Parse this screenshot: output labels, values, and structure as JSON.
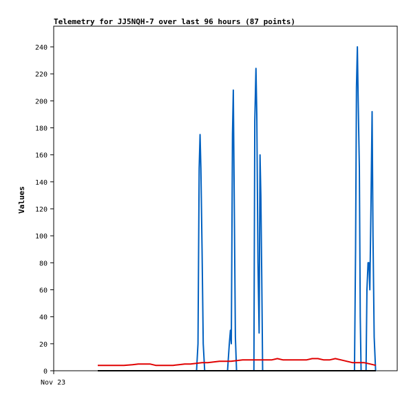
{
  "chart_data": {
    "type": "line",
    "title": "Telemetry for JJ5NQH-7 over last 96 hours (87 points)",
    "xlabel": "",
    "ylabel": "Values",
    "x_tick_labels": [
      "Nov 23"
    ],
    "y_ticks": [
      0,
      20,
      40,
      60,
      80,
      100,
      120,
      140,
      160,
      180,
      200,
      220,
      240
    ],
    "ylim": [
      0,
      256
    ],
    "xlim": [
      0,
      96
    ],
    "grid": false,
    "legend": "none",
    "series": [
      {
        "color": "#0060c0",
        "x": [
          0,
          34.1,
          34.6,
          35.0,
          35.3,
          35.6,
          36.0,
          36.4,
          36.9,
          37.3,
          44.8,
          45.4,
          45.8,
          46.1,
          46.5,
          46.8,
          47.1,
          47.5,
          47.9,
          48.3,
          48.8,
          49.2,
          49.6,
          50.0,
          53.9,
          54.2,
          54.6,
          54.9,
          55.3,
          55.7,
          56.0,
          56.3,
          56.6,
          56.9,
          57.2,
          57.6,
          57.9,
          58.4,
          88.6,
          89.0,
          89.3,
          89.6,
          89.9,
          90.3,
          90.6,
          90.9,
          91.3,
          91.6,
          91.9,
          92.2,
          92.6,
          92.9,
          93.3,
          93.6,
          93.9,
          94.3,
          94.7,
          95.0,
          95.4,
          95.9,
          96.0
        ],
        "values": [
          0,
          0,
          20,
          150,
          175,
          150,
          90,
          20,
          0,
          0,
          0,
          20,
          30,
          20,
          175,
          208,
          130,
          25,
          0,
          0,
          0,
          0,
          0,
          0,
          0,
          185,
          224,
          190,
          80,
          28,
          160,
          130,
          70,
          0,
          0,
          0,
          0,
          0,
          0,
          90,
          210,
          240,
          200,
          150,
          40,
          0,
          0,
          0,
          0,
          0,
          0,
          60,
          80,
          80,
          60,
          120,
          192,
          100,
          25,
          0,
          0
        ]
      },
      {
        "color": "#e00000",
        "x": [
          0,
          3,
          6,
          9,
          12,
          14,
          16,
          18,
          20,
          22,
          24,
          26,
          28,
          30,
          32,
          34,
          36,
          38,
          40,
          42,
          44,
          46,
          48,
          50,
          52,
          54,
          56,
          58,
          60,
          62,
          64,
          66,
          68,
          70,
          72,
          74,
          76,
          78,
          80,
          82,
          84,
          86,
          88,
          90,
          92,
          94,
          96
        ],
        "values": [
          4,
          4,
          4,
          4,
          4.5,
          5,
          5,
          5,
          4,
          4,
          4,
          4,
          4.5,
          5,
          5,
          5.5,
          6,
          6,
          6.5,
          7,
          7,
          7,
          7.5,
          8,
          8,
          8,
          8,
          8,
          8,
          9,
          8,
          8,
          8,
          8,
          8,
          9,
          9,
          8,
          8,
          9,
          8,
          7,
          6,
          6,
          6,
          5,
          4
        ]
      },
      {
        "color": "#000000",
        "x": [
          0,
          96
        ],
        "values": [
          0,
          0
        ]
      }
    ]
  }
}
